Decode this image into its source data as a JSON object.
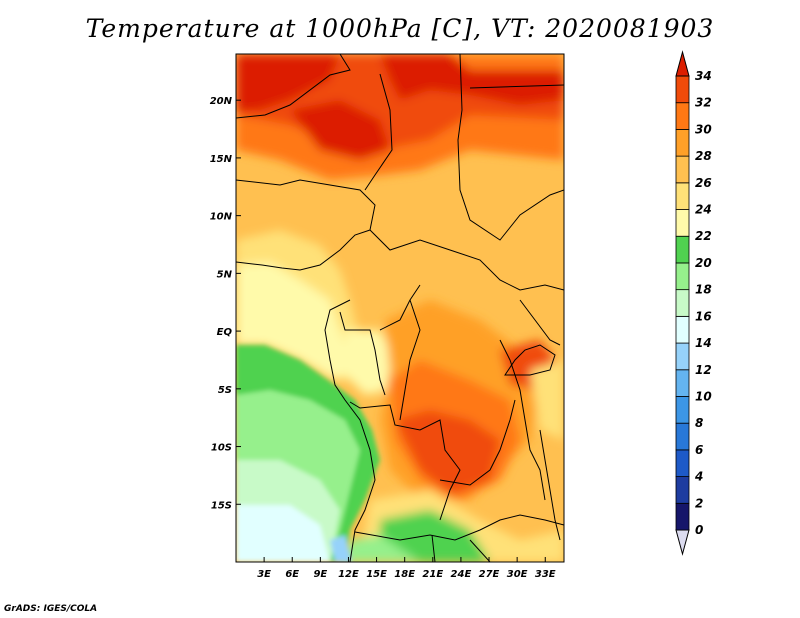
{
  "title": "Temperature at 1000hPa [C], VT: 2020081903",
  "footer": "GrADS: IGES/COLA",
  "map": {
    "lon_range": [
      0,
      35
    ],
    "lat_range": [
      -20,
      24
    ],
    "x_ticks": [
      {
        "value": 3,
        "label": "3E"
      },
      {
        "value": 6,
        "label": "6E"
      },
      {
        "value": 9,
        "label": "9E"
      },
      {
        "value": 12,
        "label": "12E"
      },
      {
        "value": 15,
        "label": "15E"
      },
      {
        "value": 18,
        "label": "18E"
      },
      {
        "value": 21,
        "label": "21E"
      },
      {
        "value": 24,
        "label": "24E"
      },
      {
        "value": 27,
        "label": "27E"
      },
      {
        "value": 30,
        "label": "30E"
      },
      {
        "value": 33,
        "label": "33E"
      }
    ],
    "y_ticks": [
      {
        "value": 20,
        "label": "20N"
      },
      {
        "value": 15,
        "label": "15N"
      },
      {
        "value": 10,
        "label": "10N"
      },
      {
        "value": 5,
        "label": "5N"
      },
      {
        "value": 0,
        "label": "EQ"
      },
      {
        "value": -5,
        "label": "5S"
      },
      {
        "value": -10,
        "label": "10S"
      },
      {
        "value": -15,
        "label": "15S"
      }
    ]
  },
  "colorbar": {
    "levels": [
      0,
      2,
      4,
      6,
      8,
      10,
      12,
      14,
      16,
      18,
      20,
      22,
      24,
      26,
      28,
      30,
      32,
      34
    ],
    "labels": [
      "0",
      "2",
      "4",
      "6",
      "8",
      "10",
      "12",
      "14",
      "16",
      "18",
      "20",
      "22",
      "24",
      "26",
      "28",
      "30",
      "32",
      "34"
    ],
    "colors": [
      "#dcdcf0",
      "#16166a",
      "#1e3ca0",
      "#1e5ac8",
      "#2878d8",
      "#3c96e6",
      "#64b4f0",
      "#96d2fa",
      "#e1ffff",
      "#c8fac8",
      "#96f08c",
      "#50d250",
      "#fffaaa",
      "#ffe178",
      "#ffc050",
      "#ffa028",
      "#ff7814",
      "#f04b0a",
      "#dc1e00"
    ]
  }
}
